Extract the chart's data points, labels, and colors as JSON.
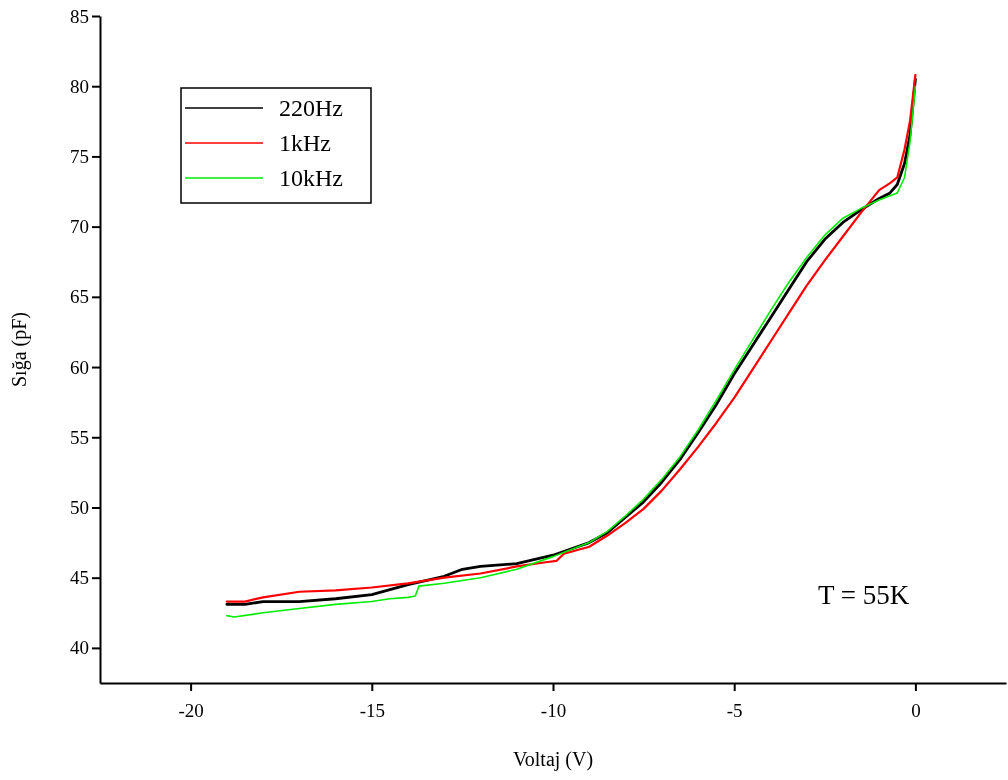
{
  "chart_data": {
    "type": "line",
    "xlabel": "Voltaj (V)",
    "ylabel": "Sığa (pF)",
    "xlim": [
      -22.5,
      2.5
    ],
    "xticks": [
      -20,
      -15,
      -10,
      -5,
      0
    ],
    "ylim": [
      37.5,
      85
    ],
    "yticks": [
      40,
      45,
      50,
      55,
      60,
      65,
      70,
      75,
      80,
      85
    ],
    "grid": false,
    "legend": "top left",
    "marker": "none",
    "line_style": "solid",
    "annotations": [
      "T = 55K"
    ],
    "series": [
      {
        "name": "220Hz",
        "color": "#000000",
        "x": [
          -19,
          -18.5,
          -18,
          -17,
          -16,
          -15,
          -14,
          -13,
          -12.5,
          -12,
          -11,
          -10,
          -9,
          -8.5,
          -8,
          -7.5,
          -7,
          -6.5,
          -6,
          -5.5,
          -5,
          -4.5,
          -4,
          -3.5,
          -3,
          -2.5,
          -2,
          -1.5,
          -1,
          -0.7,
          -0.5,
          -0.3,
          -0.15,
          0
        ],
        "values": [
          43.1,
          43.1,
          43.3,
          43.3,
          43.5,
          43.8,
          44.5,
          45.1,
          45.6,
          45.8,
          46,
          46.6,
          47.5,
          48.2,
          49.3,
          50.4,
          51.8,
          53.4,
          55.3,
          57.3,
          59.5,
          61.5,
          63.5,
          65.5,
          67.5,
          69.1,
          70.3,
          71.2,
          72,
          72.4,
          73,
          74.5,
          76.5,
          80.5
        ]
      },
      {
        "name": "1kHz",
        "color": "#ff0000",
        "x": [
          -19,
          -18.5,
          -18,
          -17,
          -16,
          -15,
          -14,
          -13,
          -12,
          -11,
          -10.2,
          -9.9,
          -9.7,
          -9,
          -8.5,
          -8,
          -7.5,
          -7,
          -6.5,
          -6,
          -5.5,
          -5,
          -4.5,
          -4,
          -3.5,
          -3,
          -2.5,
          -2,
          -1.5,
          -1,
          -0.7,
          -0.5,
          -0.3,
          -0.15,
          0
        ],
        "values": [
          43.3,
          43.3,
          43.6,
          44,
          44.1,
          44.3,
          44.6,
          45,
          45.3,
          45.8,
          46.1,
          46.2,
          46.7,
          47.2,
          48,
          48.9,
          49.9,
          51.2,
          52.7,
          54.3,
          56,
          57.8,
          59.8,
          61.8,
          63.8,
          65.8,
          67.6,
          69.3,
          71,
          72.6,
          73.1,
          73.5,
          75.5,
          77.5,
          80.8
        ]
      },
      {
        "name": "10kHz",
        "color": "#00ee00",
        "x": [
          -19,
          -18.8,
          -18,
          -17,
          -16,
          -15,
          -14.5,
          -14,
          -13.8,
          -13.7,
          -13,
          -12,
          -11,
          -10,
          -9,
          -8.5,
          -8,
          -7.5,
          -7,
          -6.5,
          -6,
          -5.5,
          -5,
          -4.5,
          -4,
          -3.5,
          -3,
          -2.5,
          -2,
          -1.5,
          -1,
          -0.7,
          -0.5,
          -0.3,
          -0.15,
          0
        ],
        "values": [
          42.3,
          42.2,
          42.5,
          42.8,
          43.1,
          43.3,
          43.5,
          43.6,
          43.7,
          44.4,
          44.6,
          45,
          45.6,
          46.5,
          47.5,
          48.3,
          49.4,
          50.6,
          52,
          53.6,
          55.5,
          57.6,
          59.8,
          61.9,
          64,
          66,
          67.8,
          69.4,
          70.6,
          71.3,
          71.9,
          72.2,
          72.4,
          73.5,
          76,
          80
        ]
      }
    ]
  }
}
